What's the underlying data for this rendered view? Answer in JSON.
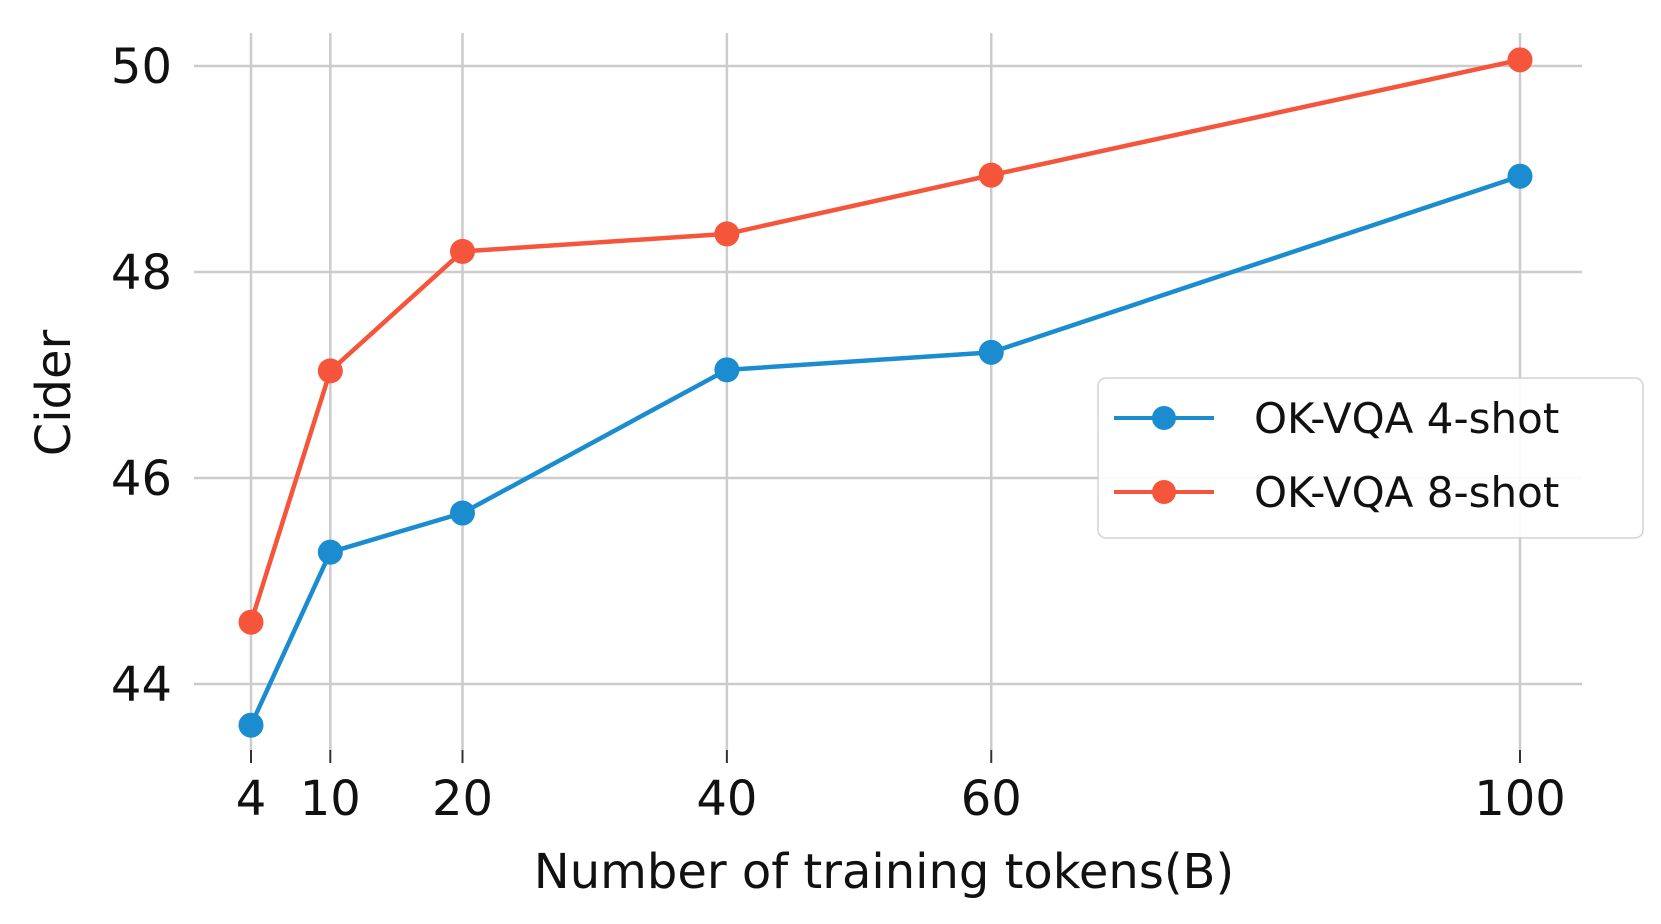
{
  "chart_data": {
    "type": "line",
    "title": "",
    "xlabel": "Number of training tokens(B)",
    "ylabel": "Cider",
    "x": [
      4,
      10,
      20,
      40,
      60,
      100
    ],
    "x_ticks": [
      "4",
      "10",
      "20",
      "40",
      "60",
      "100"
    ],
    "y_ticks": [
      "44",
      "46",
      "48",
      "50"
    ],
    "xlim": [
      4,
      100
    ],
    "ylim": [
      43.5,
      50.3
    ],
    "grid": true,
    "legend_position": "center-right",
    "series": [
      {
        "name": "OK-VQA 4-shot",
        "color": "#1a8ccf",
        "values": [
          43.6,
          45.28,
          45.66,
          47.05,
          47.22,
          48.93
        ]
      },
      {
        "name": "OK-VQA 8-shot",
        "color": "#f5553a",
        "values": [
          44.6,
          47.04,
          48.2,
          48.37,
          48.94,
          50.06
        ]
      }
    ]
  }
}
